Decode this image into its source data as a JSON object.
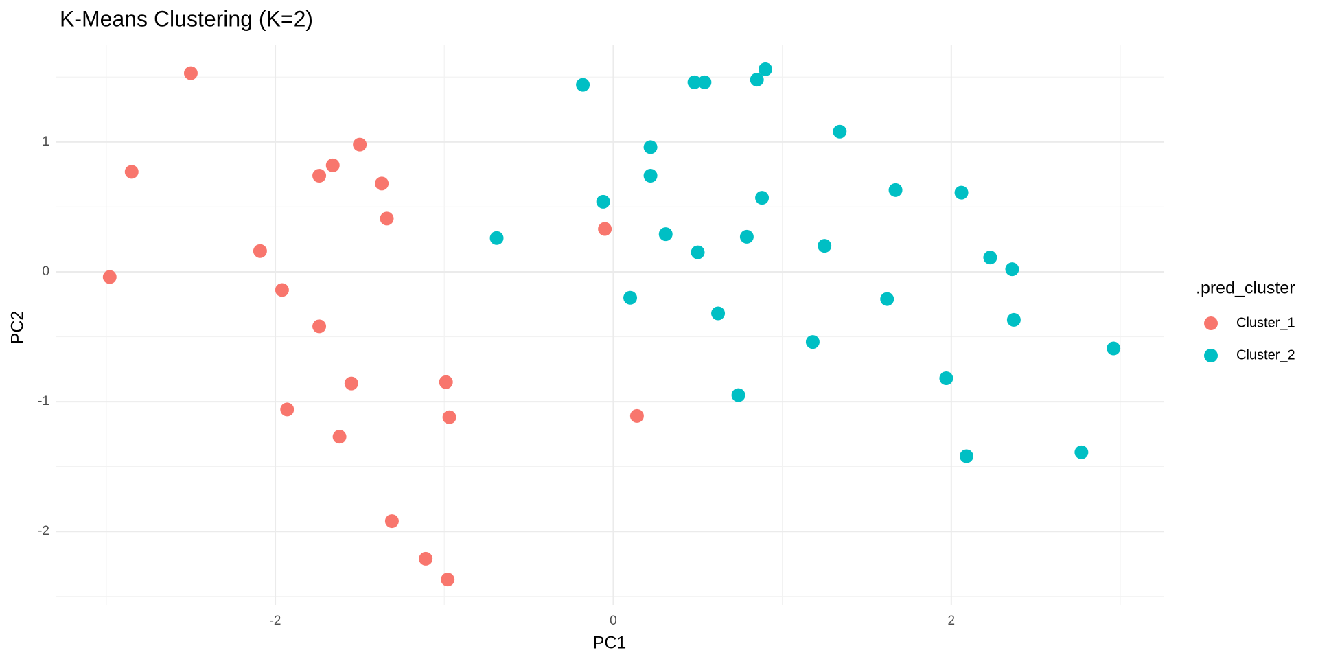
{
  "chart_data": {
    "type": "scatter",
    "title": "K-Means Clustering (K=2)",
    "x_label": "PC1",
    "y_label": "PC2",
    "legend_title": ".pred_cluster",
    "legend_position": "right",
    "grid": true,
    "xlim": [
      -3.3,
      3.26
    ],
    "ylim": [
      -2.57,
      1.75
    ],
    "xticks": [
      -2,
      0,
      2
    ],
    "yticks": [
      -2,
      -1,
      0,
      1
    ],
    "x_minor_grid": [
      -3,
      -1,
      1,
      3
    ],
    "y_minor_grid": [
      -2.5,
      -1.5,
      -0.5,
      0.5,
      1.5
    ],
    "series": [
      {
        "name": "Cluster_1",
        "color": "#F8766D",
        "x": [
          -2.5,
          -2.85,
          -2.98,
          -1.5,
          -1.66,
          -1.74,
          -1.37,
          -1.34,
          -2.09,
          -1.96,
          -1.74,
          -1.55,
          -0.99,
          -1.93,
          -0.97,
          -1.62,
          -0.05,
          0.14,
          -1.31,
          -1.11,
          -0.98
        ],
        "values": [
          1.53,
          0.77,
          -0.04,
          0.98,
          0.82,
          0.74,
          0.68,
          0.41,
          0.16,
          -0.14,
          -0.42,
          -0.86,
          -0.85,
          -1.06,
          -1.12,
          -1.27,
          0.33,
          -1.11,
          -1.92,
          -2.21,
          -2.37
        ]
      },
      {
        "name": "Cluster_2",
        "color": "#00BFC4",
        "x": [
          -0.18,
          0.48,
          0.54,
          0.85,
          0.9,
          1.34,
          0.22,
          0.22,
          -0.06,
          0.88,
          1.67,
          2.06,
          -0.69,
          0.31,
          0.79,
          0.5,
          1.25,
          2.23,
          2.36,
          0.1,
          0.62,
          1.62,
          2.37,
          1.18,
          2.96,
          1.97,
          0.74,
          2.09,
          2.77
        ],
        "values": [
          1.44,
          1.46,
          1.46,
          1.48,
          1.56,
          1.08,
          0.96,
          0.74,
          0.54,
          0.57,
          0.63,
          0.61,
          0.26,
          0.29,
          0.27,
          0.15,
          0.2,
          0.11,
          0.02,
          -0.2,
          -0.32,
          -0.21,
          -0.37,
          -0.54,
          -0.59,
          -0.82,
          -0.95,
          -1.42,
          -1.39
        ]
      }
    ]
  }
}
